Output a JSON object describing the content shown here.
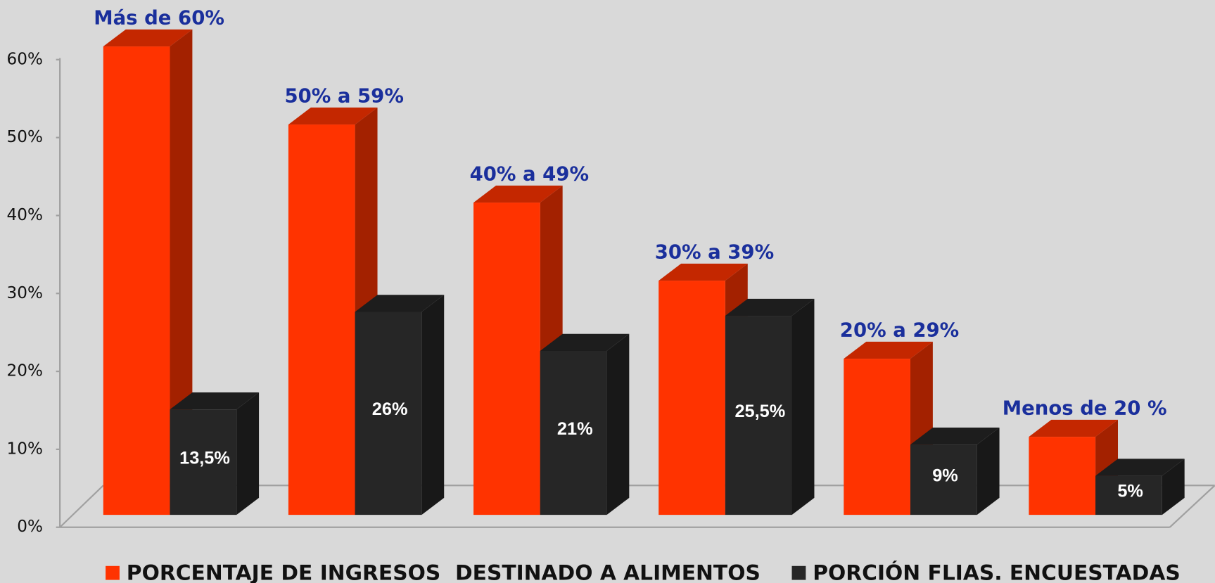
{
  "chart_data": {
    "type": "bar3d",
    "categories": [
      "Más de 60%",
      "50% a 59%",
      "40% a 49%",
      "30% a 39%",
      "20% a 29%",
      "Menos de 20 %"
    ],
    "series": [
      {
        "name": "PORCENTAJE DE INGRESOS  DESTINADO A ALIMENTOS",
        "color": "#ff3300",
        "values": [
          60,
          50,
          40,
          30,
          20,
          10
        ]
      },
      {
        "name": "PORCIÓN FLIAS. ENCUESTADAS",
        "color": "#262626",
        "values": [
          13.5,
          26,
          21,
          25.5,
          9,
          5
        ],
        "value_labels": [
          "13,5%",
          "26%",
          "21%",
          "25,5%",
          "9%",
          "5%"
        ]
      }
    ],
    "ylim": [
      0,
      60
    ],
    "yticks": [
      {
        "value": 0,
        "label": "0%"
      },
      {
        "value": 10,
        "label": "10%"
      },
      {
        "value": 20,
        "label": "20%"
      },
      {
        "value": 30,
        "label": "30%"
      },
      {
        "value": 40,
        "label": "40%"
      },
      {
        "value": 50,
        "label": "50%"
      },
      {
        "value": 60,
        "label": "60%"
      }
    ],
    "legend": "bottom"
  }
}
